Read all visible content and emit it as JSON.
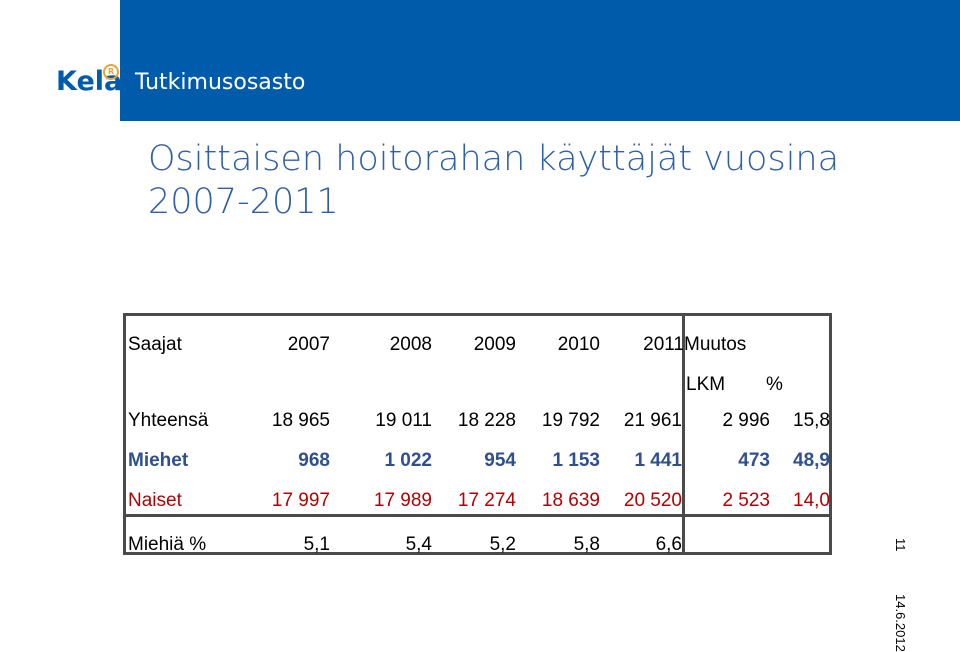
{
  "header": {
    "logo_text": "Kela",
    "department": "Tutkimusosasto",
    "brand_color": "#005cab"
  },
  "slide": {
    "title_line1": "Osittaisen hoitorahan käyttäjät vuosina",
    "title_line2": "2007-2011",
    "page_number": "11",
    "date": "14.6.2012"
  },
  "table": {
    "header_label": "Saajat",
    "years": [
      "2007",
      "2008",
      "2009",
      "2010",
      "2011"
    ],
    "change_label": "Muutos",
    "lkm_label": "LKM",
    "pct_label": "%",
    "rows": [
      {
        "label": "Yhteensä",
        "values": [
          "18 965",
          "19 011",
          "18 228",
          "19 792",
          "21 961"
        ],
        "lkm": "2 996",
        "pct": "15,8"
      },
      {
        "label": "Miehet",
        "values": [
          "968",
          "1 022",
          "954",
          "1 153",
          "1 441"
        ],
        "lkm": "473",
        "pct": "48,9"
      },
      {
        "label": "Naiset",
        "values": [
          "17 997",
          "17 989",
          "17 274",
          "18 639",
          "20 520"
        ],
        "lkm": "2 523",
        "pct": "14,0"
      }
    ],
    "share_row": {
      "label": "Miehiä %",
      "values": [
        "5,1",
        "5,4",
        "5,2",
        "5,8",
        "6,6"
      ]
    }
  }
}
